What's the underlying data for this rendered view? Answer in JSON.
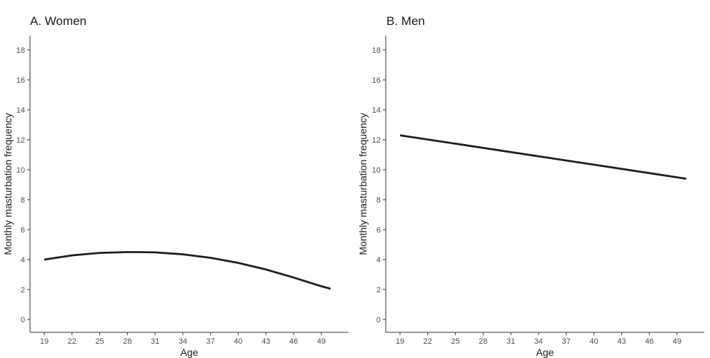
{
  "chart_data": [
    {
      "type": "line",
      "title": "A. Women",
      "xlabel": "Age",
      "ylabel": "Monthly masturbation frequency",
      "xlim": [
        19,
        50
      ],
      "ylim": [
        0,
        18
      ],
      "x_ticks": [
        19,
        22,
        25,
        28,
        31,
        34,
        37,
        40,
        43,
        46,
        49
      ],
      "y_ticks": [
        0,
        2,
        4,
        6,
        8,
        10,
        12,
        14,
        16,
        18
      ],
      "grid": false,
      "series": [
        {
          "x": [
            19,
            22,
            25,
            28,
            29,
            31,
            34,
            37,
            40,
            43,
            46,
            49,
            50
          ],
          "y": [
            4.0,
            4.28,
            4.45,
            4.5,
            4.5,
            4.48,
            4.35,
            4.12,
            3.78,
            3.34,
            2.8,
            2.22,
            2.05
          ],
          "color": "#1f1f1f"
        }
      ]
    },
    {
      "type": "line",
      "title": "B. Men",
      "xlabel": "Age",
      "ylabel": "Monthly masturbation frequency",
      "xlim": [
        19,
        50
      ],
      "ylim": [
        0,
        18
      ],
      "x_ticks": [
        19,
        22,
        25,
        28,
        31,
        34,
        37,
        40,
        43,
        46,
        49
      ],
      "y_ticks": [
        0,
        2,
        4,
        6,
        8,
        10,
        12,
        14,
        16,
        18
      ],
      "grid": false,
      "series": [
        {
          "x": [
            19,
            50
          ],
          "y": [
            12.3,
            9.4
          ],
          "color": "#1f1f1f"
        }
      ]
    }
  ]
}
